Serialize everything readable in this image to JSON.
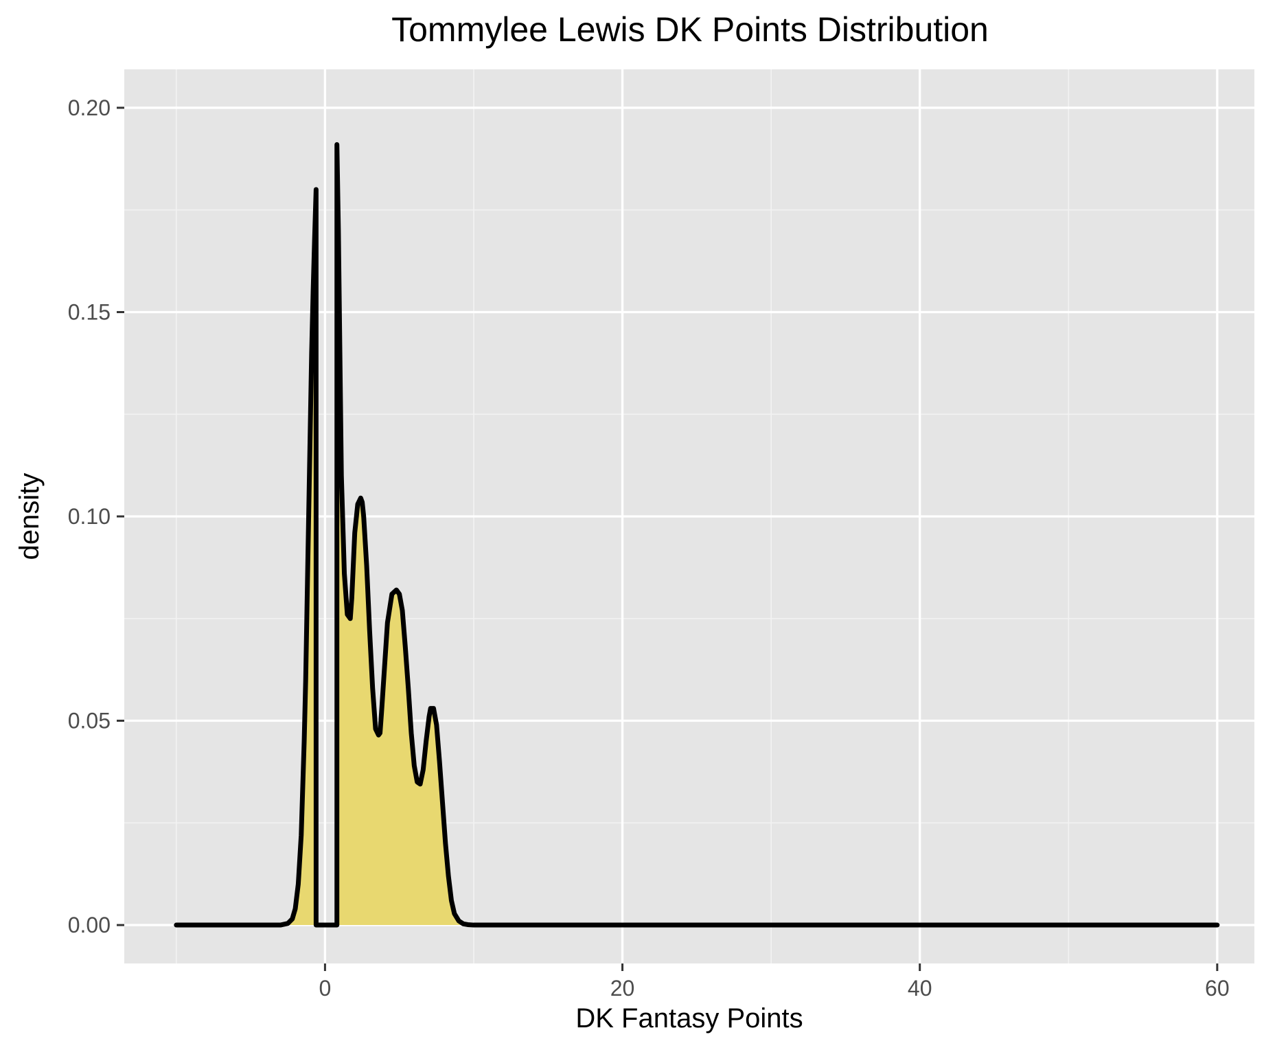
{
  "chart_data": {
    "type": "area",
    "title": "Tommylee Lewis DK Points Distribution",
    "xlabel": "DK Fantasy Points",
    "ylabel": "density",
    "xlim": [
      -13.5,
      62.5
    ],
    "ylim": [
      -0.0094,
      0.2094
    ],
    "x_ticks": [
      0,
      20,
      40,
      60
    ],
    "x_tick_labels": [
      "0",
      "20",
      "40",
      "60"
    ],
    "y_ticks": [
      0,
      0.05,
      0.1,
      0.15,
      0.2
    ],
    "y_tick_labels": [
      "0.00",
      "0.05",
      "0.10",
      "0.15",
      "0.20"
    ],
    "x_minor": [
      -10,
      10,
      30,
      50
    ],
    "y_minor": [
      0.025,
      0.075,
      0.125,
      0.175
    ],
    "grid": true,
    "legend": "none",
    "series": [
      {
        "fill": "#e8d870",
        "stroke": "#000000",
        "x": [
          -10,
          -3,
          -2.5,
          -2.2,
          -2.0,
          -1.8,
          -1.6,
          -1.4,
          -1.3,
          -1.2,
          -1.1,
          -1.0,
          -0.9,
          -0.8,
          -0.7,
          -0.6,
          -0.6,
          0.8,
          0.8,
          0.9,
          1.0,
          1.1,
          1.3,
          1.5,
          1.7,
          1.8,
          1.9,
          2.0,
          2.2,
          2.4,
          2.5,
          2.6,
          2.8,
          3.0,
          3.2,
          3.4,
          3.6,
          3.7,
          3.8,
          4.0,
          4.2,
          4.5,
          4.8,
          5.0,
          5.2,
          5.4,
          5.6,
          5.8,
          6.0,
          6.2,
          6.4,
          6.6,
          6.8,
          7.0,
          7.1,
          7.3,
          7.5,
          7.7,
          7.9,
          8.1,
          8.3,
          8.5,
          8.7,
          9.0,
          9.3,
          9.6,
          10,
          12,
          20,
          30,
          40,
          50,
          60
        ],
        "y": [
          0,
          0,
          0.0004,
          0.0015,
          0.004,
          0.01,
          0.022,
          0.045,
          0.06,
          0.08,
          0.1,
          0.12,
          0.14,
          0.155,
          0.168,
          0.18,
          0,
          0,
          0.191,
          0.17,
          0.14,
          0.11,
          0.086,
          0.076,
          0.075,
          0.08,
          0.088,
          0.096,
          0.103,
          0.1045,
          0.1035,
          0.1,
          0.088,
          0.072,
          0.058,
          0.048,
          0.0465,
          0.047,
          0.052,
          0.063,
          0.074,
          0.081,
          0.082,
          0.081,
          0.077,
          0.068,
          0.058,
          0.047,
          0.039,
          0.035,
          0.0345,
          0.038,
          0.045,
          0.051,
          0.053,
          0.053,
          0.049,
          0.04,
          0.03,
          0.02,
          0.012,
          0.006,
          0.0028,
          0.001,
          0.0003,
          0.0001,
          0,
          0,
          0,
          0,
          0,
          0,
          0
        ]
      }
    ]
  }
}
